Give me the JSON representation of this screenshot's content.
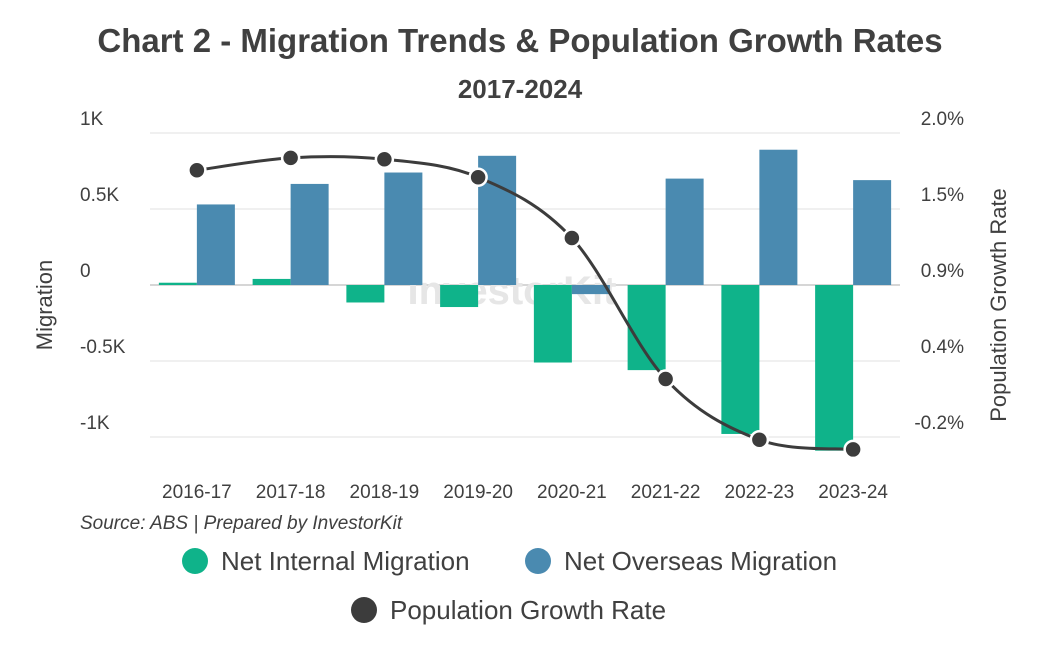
{
  "chart_data": {
    "type": "bar+line",
    "title": "Chart 2 - Migration Trends & Population Growth Rates",
    "subtitle": "2017-2024",
    "source": "Source: ABS | Prepared by InvestorKit",
    "watermark": "InvestorKit",
    "categories": [
      "2016-17",
      "2017-18",
      "2018-19",
      "2019-20",
      "2020-21",
      "2021-22",
      "2022-23",
      "2023-24"
    ],
    "left_axis": {
      "label": "Migration",
      "range": [
        -1000,
        1000
      ],
      "ticks": [
        1000,
        500,
        0,
        -500,
        -1000
      ],
      "tick_labels": [
        "1K",
        "0.5K",
        "0",
        "-0.5K",
        "-1K"
      ]
    },
    "right_axis": {
      "label": "Population Growth Rate",
      "range": [
        -0.2,
        2.0
      ],
      "ticks": [
        2.0,
        1.5,
        0.9,
        0.4,
        -0.2
      ],
      "tick_labels": [
        "2.0%",
        "1.5%",
        "0.9%",
        "0.4%",
        "-0.2%"
      ]
    },
    "series": [
      {
        "name": "Net Internal Migration",
        "type": "bar",
        "axis": "left",
        "color": "#0fb38a",
        "values": [
          15,
          40,
          -115,
          -145,
          -510,
          -560,
          -980,
          -1090
        ]
      },
      {
        "name": "Net Overseas Migration",
        "type": "bar",
        "axis": "left",
        "color": "#4a8ab0",
        "values": [
          530,
          665,
          740,
          850,
          -60,
          700,
          890,
          690
        ]
      },
      {
        "name": "Population Growth Rate",
        "type": "line",
        "axis": "right",
        "color": "#3c3c3c",
        "values": [
          1.73,
          1.82,
          1.81,
          1.68,
          1.24,
          0.22,
          -0.22,
          -0.29
        ]
      }
    ],
    "legend": {
      "placement": "bottom",
      "items": [
        {
          "label": "Net Internal Migration",
          "color": "#0fb38a"
        },
        {
          "label": "Net Overseas Migration",
          "color": "#4a8ab0"
        },
        {
          "label": "Population Growth Rate",
          "color": "#3c3c3c"
        }
      ]
    }
  }
}
